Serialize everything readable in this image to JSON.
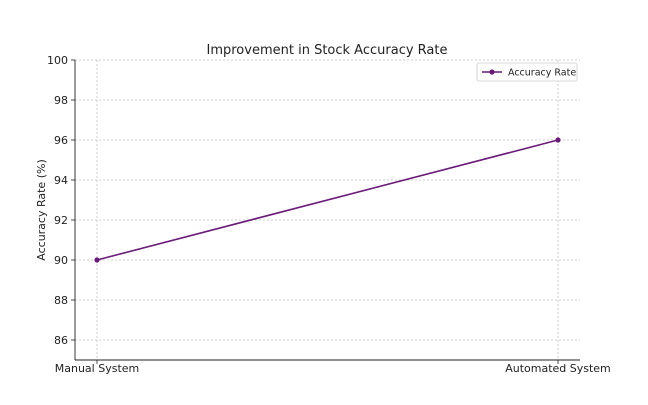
{
  "chart_data": {
    "type": "line",
    "title": "Improvement in Stock Accuracy Rate",
    "xlabel": "",
    "ylabel": "Accuracy Rate (%)",
    "categories": [
      "Manual System",
      "Automated System"
    ],
    "series": [
      {
        "name": "Accuracy Rate",
        "values": [
          90,
          96
        ],
        "color": "#6b1a7a",
        "marker": "circle"
      }
    ],
    "ylim": [
      85,
      100
    ],
    "yticks": [
      86,
      88,
      90,
      92,
      94,
      96,
      98,
      100
    ],
    "grid": true,
    "legend_position": "top-right"
  }
}
